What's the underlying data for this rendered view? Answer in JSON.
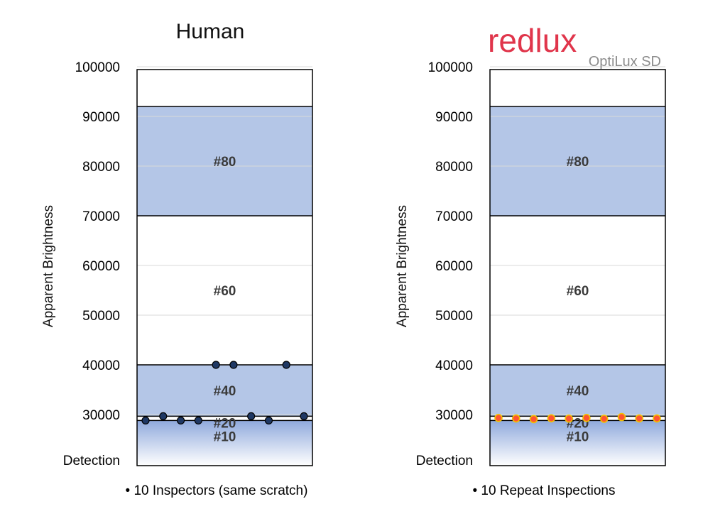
{
  "logo": {
    "word": "redlux",
    "subtitle": "OptiLux SD"
  },
  "chart_data": [
    {
      "type": "scatter",
      "title": "Human",
      "ylabel": "Apparent Brightness",
      "ylim": [
        0,
        100000
      ],
      "ytick_values": [
        30000,
        40000,
        50000,
        60000,
        70000,
        80000,
        90000,
        100000
      ],
      "ytick_labels": [
        "30000",
        "40000",
        "50000",
        "60000",
        "70000",
        "80000",
        "90000",
        "100000"
      ],
      "bottom_label": "Detection",
      "grid": true,
      "bands": [
        {
          "label": "#10",
          "from": 0,
          "to": 26500,
          "fill": "gradient"
        },
        {
          "label": "#20",
          "from": 26500,
          "to": 29000,
          "fill": "white"
        },
        {
          "label": "#40",
          "from": 29000,
          "to": 40000,
          "fill": "blue"
        },
        {
          "label": "#60",
          "from": 40000,
          "to": 70000,
          "fill": "white"
        },
        {
          "label": "#80",
          "from": 70000,
          "to": 92000,
          "fill": "blue"
        }
      ],
      "series": [
        {
          "marker_color": "#1f3864",
          "x": [
            1,
            2,
            3,
            4,
            5,
            6,
            7,
            8,
            9,
            10
          ],
          "y": [
            26500,
            29000,
            26500,
            26500,
            40000,
            40000,
            29000,
            26500,
            40000,
            29000
          ]
        }
      ],
      "caption": "• 10 Inspectors (same scratch)"
    },
    {
      "type": "scatter",
      "title": "",
      "ylabel": "Apparent Brightness",
      "ylim": [
        0,
        100000
      ],
      "ytick_values": [
        30000,
        40000,
        50000,
        60000,
        70000,
        80000,
        90000,
        100000
      ],
      "ytick_labels": [
        "30000",
        "40000",
        "50000",
        "60000",
        "70000",
        "80000",
        "90000",
        "100000"
      ],
      "bottom_label": "Detection",
      "grid": true,
      "bands": [
        {
          "label": "#10",
          "from": 0,
          "to": 26500,
          "fill": "gradient"
        },
        {
          "label": "#20",
          "from": 26500,
          "to": 29000,
          "fill": "white"
        },
        {
          "label": "#40",
          "from": 29000,
          "to": 40000,
          "fill": "blue"
        },
        {
          "label": "#60",
          "from": 40000,
          "to": 70000,
          "fill": "white"
        },
        {
          "label": "#80",
          "from": 70000,
          "to": 92000,
          "fill": "blue"
        }
      ],
      "series": [
        {
          "marker_color": "#ff5533",
          "x": [
            1,
            2,
            3,
            4,
            5,
            6,
            7,
            8,
            9,
            10
          ],
          "y": [
            28000,
            27700,
            27300,
            27800,
            27600,
            28000,
            27500,
            28500,
            27700,
            27700
          ]
        }
      ],
      "caption": "• 10 Repeat Inspections"
    }
  ]
}
